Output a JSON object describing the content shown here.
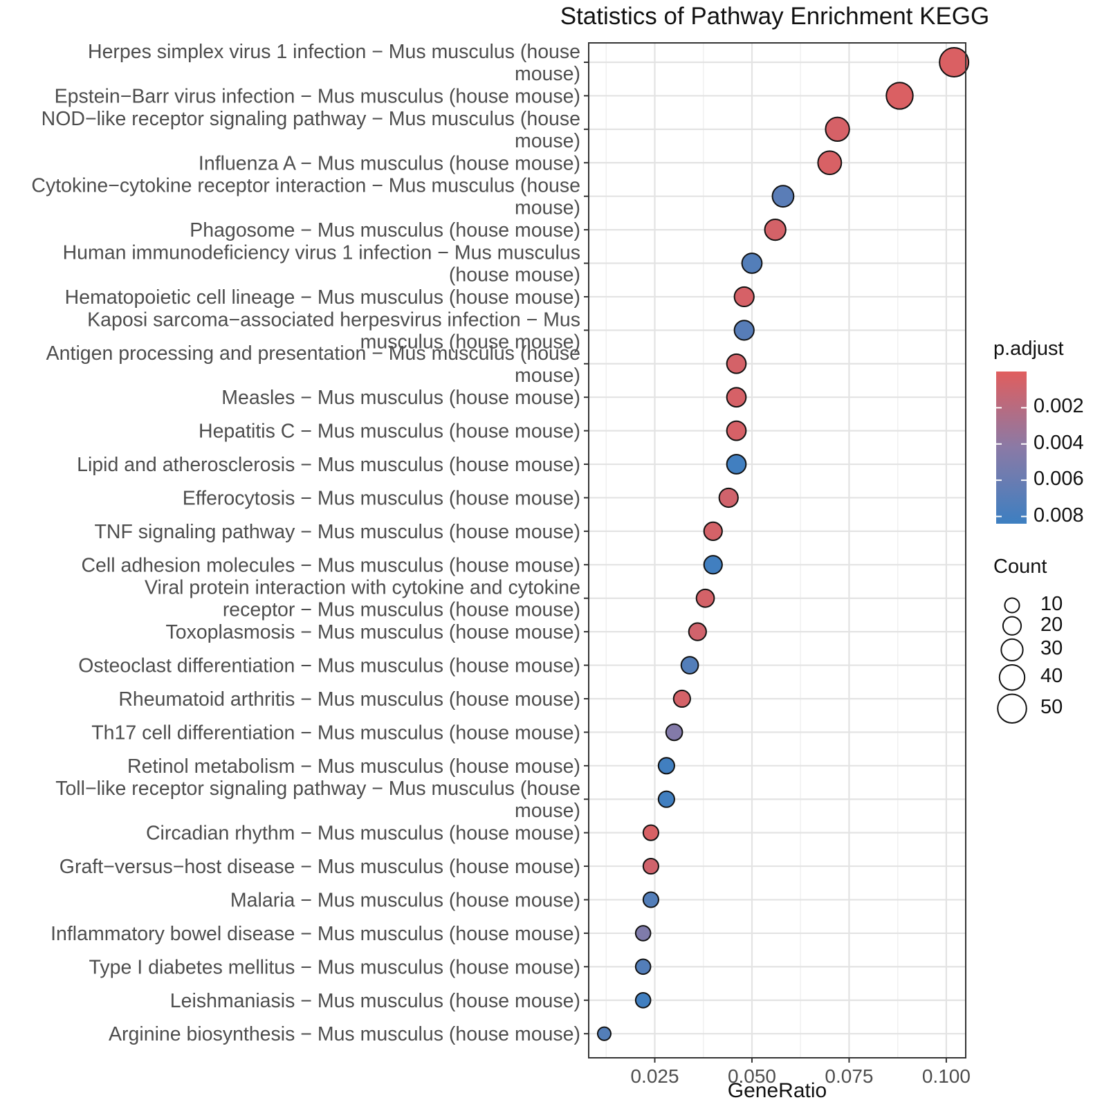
{
  "chart_data": {
    "type": "scatter",
    "title": "Statistics of Pathway Enrichment KEGG",
    "xlabel": "GeneRatio",
    "ylabel": "",
    "xlim": [
      0.008,
      0.105
    ],
    "x_ticks": [
      0.025,
      0.05,
      0.075,
      0.1
    ],
    "x_tick_labels": [
      "0.025",
      "0.050",
      "0.075",
      "0.100"
    ],
    "grid": true,
    "color_legend": {
      "title": "p.adjust",
      "ticks": [
        0.002,
        0.004,
        0.006,
        0.008
      ],
      "tick_labels": [
        "0.002",
        "0.004",
        "0.006",
        "0.008"
      ],
      "range": [
        0.0,
        0.0084
      ],
      "low_color": "#e05e5e",
      "mid_color": "#8a7aa6",
      "high_color": "#3d7fc1"
    },
    "size_legend": {
      "title": "Count",
      "values": [
        10,
        20,
        30,
        40,
        50
      ],
      "labels": [
        "10",
        "20",
        "30",
        "40",
        "50"
      ]
    },
    "points": [
      {
        "label": [
          "Herpes simplex virus 1 infection − Mus musculus (house",
          "mouse)"
        ],
        "gene_ratio": 0.102,
        "count": 51,
        "p_adjust": 0.0003
      },
      {
        "label": [
          "Epstein−Barr virus infection − Mus musculus (house mouse)"
        ],
        "gene_ratio": 0.088,
        "count": 44,
        "p_adjust": 0.0003
      },
      {
        "label": [
          "NOD−like receptor signaling pathway − Mus musculus (house",
          "mouse)"
        ],
        "gene_ratio": 0.072,
        "count": 36,
        "p_adjust": 0.0005
      },
      {
        "label": [
          "Influenza A − Mus musculus (house mouse)"
        ],
        "gene_ratio": 0.07,
        "count": 35,
        "p_adjust": 0.0004
      },
      {
        "label": [
          "Cytokine−cytokine receptor interaction − Mus musculus (house",
          "mouse)"
        ],
        "gene_ratio": 0.058,
        "count": 29,
        "p_adjust": 0.0068
      },
      {
        "label": [
          "Phagosome − Mus musculus (house mouse)"
        ],
        "gene_ratio": 0.056,
        "count": 28,
        "p_adjust": 0.0006
      },
      {
        "label": [
          "Human immunodeficiency virus 1 infection − Mus musculus",
          "(house mouse)"
        ],
        "gene_ratio": 0.05,
        "count": 25,
        "p_adjust": 0.0072
      },
      {
        "label": [
          "Hematopoietic cell lineage − Mus musculus (house mouse)"
        ],
        "gene_ratio": 0.048,
        "count": 24,
        "p_adjust": 0.0005
      },
      {
        "label": [
          "Kaposi sarcoma−associated herpesvirus infection − Mus",
          "musculus (house mouse)"
        ],
        "gene_ratio": 0.048,
        "count": 24,
        "p_adjust": 0.007
      },
      {
        "label": [
          "Antigen processing and presentation − Mus musculus (house",
          "mouse)"
        ],
        "gene_ratio": 0.046,
        "count": 23,
        "p_adjust": 0.0006
      },
      {
        "label": [
          "Measles − Mus musculus (house mouse)"
        ],
        "gene_ratio": 0.046,
        "count": 23,
        "p_adjust": 0.0005
      },
      {
        "label": [
          "Hepatitis C − Mus musculus (house mouse)"
        ],
        "gene_ratio": 0.046,
        "count": 23,
        "p_adjust": 0.0005
      },
      {
        "label": [
          "Lipid and atherosclerosis − Mus musculus (house mouse)"
        ],
        "gene_ratio": 0.046,
        "count": 23,
        "p_adjust": 0.0082
      },
      {
        "label": [
          "Efferocytosis − Mus musculus (house mouse)"
        ],
        "gene_ratio": 0.044,
        "count": 22,
        "p_adjust": 0.0008
      },
      {
        "label": [
          "TNF signaling pathway − Mus musculus (house mouse)"
        ],
        "gene_ratio": 0.04,
        "count": 20,
        "p_adjust": 0.0006
      },
      {
        "label": [
          "Cell adhesion molecules − Mus musculus (house mouse)"
        ],
        "gene_ratio": 0.04,
        "count": 20,
        "p_adjust": 0.0082
      },
      {
        "label": [
          "Viral protein interaction with cytokine and cytokine",
          "receptor − Mus musculus (house mouse)"
        ],
        "gene_ratio": 0.038,
        "count": 19,
        "p_adjust": 0.0006
      },
      {
        "label": [
          "Toxoplasmosis − Mus musculus (house mouse)"
        ],
        "gene_ratio": 0.036,
        "count": 18,
        "p_adjust": 0.0008
      },
      {
        "label": [
          "Osteoclast differentiation − Mus musculus (house mouse)"
        ],
        "gene_ratio": 0.034,
        "count": 17,
        "p_adjust": 0.0072
      },
      {
        "label": [
          "Rheumatoid arthritis − Mus musculus (house mouse)"
        ],
        "gene_ratio": 0.032,
        "count": 16,
        "p_adjust": 0.0006
      },
      {
        "label": [
          "Th17 cell differentiation − Mus musculus (house mouse)"
        ],
        "gene_ratio": 0.03,
        "count": 15,
        "p_adjust": 0.0046
      },
      {
        "label": [
          "Retinol metabolism − Mus musculus (house mouse)"
        ],
        "gene_ratio": 0.028,
        "count": 14,
        "p_adjust": 0.0082
      },
      {
        "label": [
          "Toll−like receptor signaling pathway − Mus musculus (house",
          "mouse)"
        ],
        "gene_ratio": 0.028,
        "count": 14,
        "p_adjust": 0.0082
      },
      {
        "label": [
          "Circadian rhythm − Mus musculus (house mouse)"
        ],
        "gene_ratio": 0.024,
        "count": 12,
        "p_adjust": 0.0004
      },
      {
        "label": [
          "Graft−versus−host disease − Mus musculus (house mouse)"
        ],
        "gene_ratio": 0.024,
        "count": 12,
        "p_adjust": 0.0008
      },
      {
        "label": [
          "Malaria − Mus musculus (house mouse)"
        ],
        "gene_ratio": 0.024,
        "count": 12,
        "p_adjust": 0.0072
      },
      {
        "label": [
          "Inflammatory bowel disease − Mus musculus (house mouse)"
        ],
        "gene_ratio": 0.022,
        "count": 11,
        "p_adjust": 0.0048
      },
      {
        "label": [
          "Type I diabetes mellitus − Mus musculus (house mouse)"
        ],
        "gene_ratio": 0.022,
        "count": 11,
        "p_adjust": 0.0072
      },
      {
        "label": [
          "Leishmaniasis − Mus musculus (house mouse)"
        ],
        "gene_ratio": 0.022,
        "count": 11,
        "p_adjust": 0.0082
      },
      {
        "label": [
          "Arginine biosynthesis − Mus musculus (house mouse)"
        ],
        "gene_ratio": 0.012,
        "count": 6,
        "p_adjust": 0.0072
      }
    ]
  }
}
